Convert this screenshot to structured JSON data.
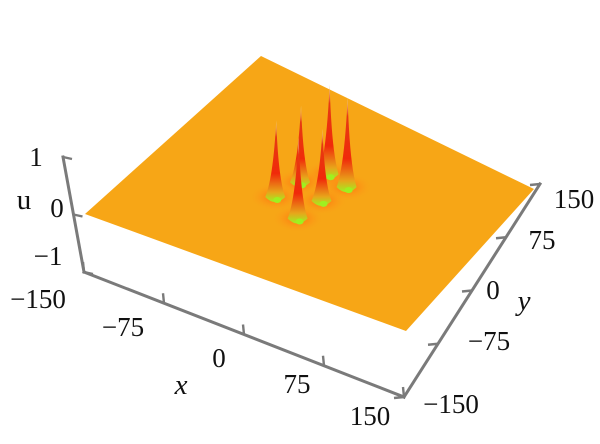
{
  "chart_data": {
    "type": "surface3d",
    "description_note": "",
    "x": {
      "label": "x",
      "ticks": [
        -150,
        -75,
        0,
        75,
        150
      ],
      "tick_labels": [
        "−150",
        "−75",
        "0",
        "75",
        "150"
      ],
      "range": [
        -150,
        150
      ]
    },
    "y": {
      "label": "y",
      "ticks": [
        -150,
        -75,
        0,
        75,
        150
      ],
      "tick_labels": [
        "−150",
        "−75",
        "0",
        "75",
        "150"
      ],
      "range": [
        -150,
        150
      ]
    },
    "z": {
      "label": "u",
      "ticks": [
        -1,
        0,
        1
      ],
      "tick_labels": [
        "−1",
        "0",
        "1"
      ],
      "range": [
        -1,
        1
      ]
    },
    "peaks": [
      {
        "x": -8,
        "y": 45,
        "height": 1.0
      },
      {
        "x": 15,
        "y": 40,
        "height": 1.0
      },
      {
        "x": -22,
        "y": 18,
        "height": 0.85
      },
      {
        "x": 8,
        "y": 8,
        "height": 0.8
      },
      {
        "x": -28,
        "y": -15,
        "height": 0.85
      },
      {
        "x": 5,
        "y": -28,
        "height": 0.9
      }
    ],
    "colors": {
      "surface": "#f7a616",
      "peak_mid": "#f02a0a",
      "peak_top": "#e8e7a4",
      "trough": "#9ff020",
      "axis": "#7a7a7a"
    }
  }
}
